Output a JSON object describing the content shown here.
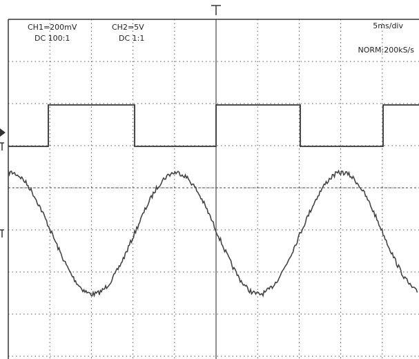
{
  "header": {
    "ch1_scale": "CH1=200mV",
    "ch1_coupling": "DC  100:1",
    "ch2_scale": "CH2=5V",
    "ch2_coupling": "DC  1:1",
    "timebase": "5ms/div",
    "mode": "NORM:200kS/s"
  }
}
